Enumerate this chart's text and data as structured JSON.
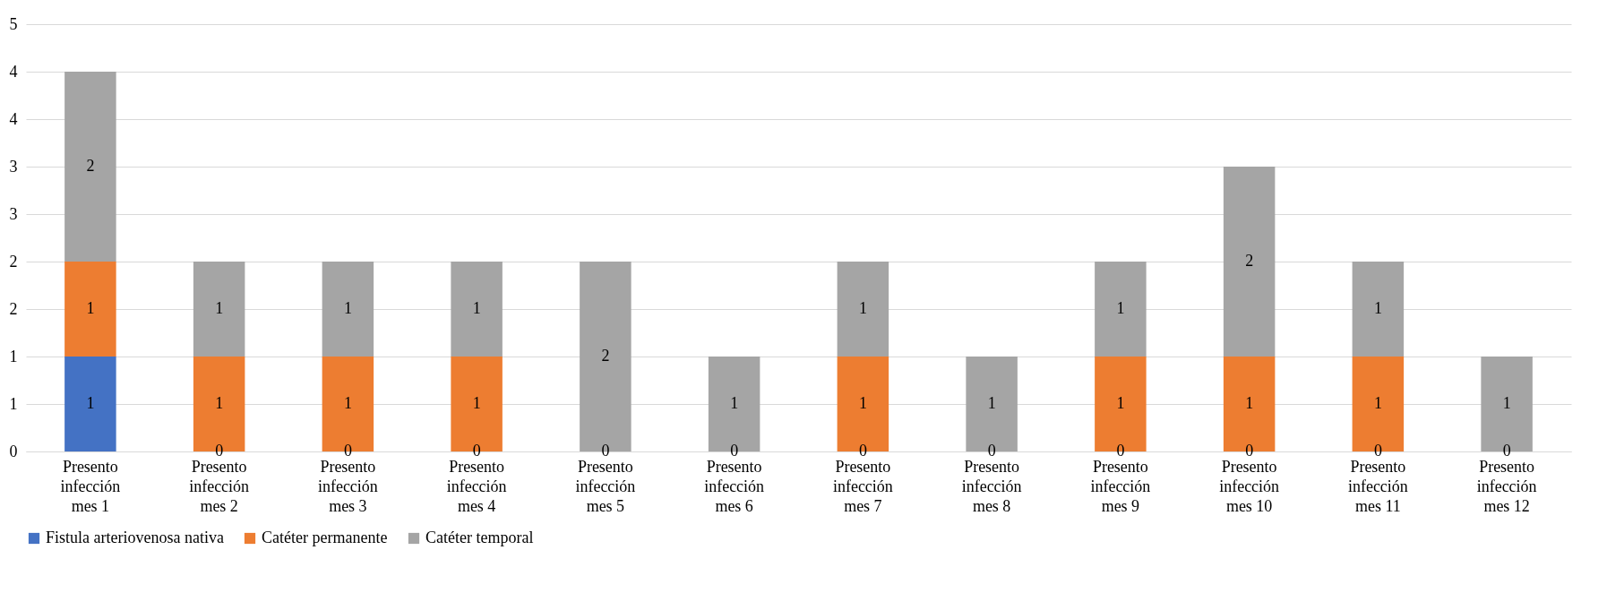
{
  "chart_data": {
    "type": "bar",
    "stacked": true,
    "grid": "y",
    "legend": "bottom",
    "categories": [
      "Presento infección mes 1",
      "Presento infección mes 2",
      "Presento infección mes 3",
      "Presento infección mes 4",
      "Presento infección mes 5",
      "Presento infección mes 6",
      "Presento infección mes 7",
      "Presento infección mes 8",
      "Presento infección mes 9",
      "Presento infección mes 10",
      "Presento infección mes 11",
      "Presento infección mes 12"
    ],
    "ylim": [
      0,
      4.5
    ],
    "yticks": [
      0,
      {
        "value": 0.5,
        "label": "1"
      },
      1,
      {
        "value": 1.5,
        "label": "2"
      },
      2,
      {
        "value": 2.5,
        "label": "3"
      },
      3,
      {
        "value": 3.5,
        "label": "4"
      },
      4,
      {
        "value": 4.5,
        "label": "5"
      }
    ],
    "series": [
      {
        "name": "Fistula arteriovenosa nativa",
        "color": "#4472c4",
        "values": [
          1,
          0,
          0,
          0,
          0,
          0,
          0,
          0,
          0,
          0,
          0,
          0
        ],
        "value_labels": [
          "1",
          null,
          null,
          null,
          null,
          null,
          null,
          null,
          null,
          null,
          null,
          null
        ]
      },
      {
        "name": "Catéter permanente",
        "color": "#ed7d31",
        "values": [
          1,
          1,
          1,
          1,
          0,
          0,
          1,
          0,
          1,
          1,
          1,
          0
        ],
        "value_labels": [
          "1",
          "1",
          "1",
          "1",
          null,
          null,
          "1",
          null,
          "1",
          "1",
          "1",
          null
        ]
      },
      {
        "name": "Catéter temporal",
        "color": "#a5a5a5",
        "values": [
          2,
          1,
          1,
          1,
          2,
          1,
          1,
          1,
          1,
          2,
          1,
          1
        ],
        "value_labels": [
          "2",
          "1",
          "1",
          "1",
          "2",
          "1",
          "1",
          "1",
          "1",
          "2",
          "1",
          "1"
        ]
      }
    ],
    "annotations": [
      {
        "text": "0",
        "x": "Presento infección mes 2",
        "y": 0
      },
      {
        "text": "0",
        "x": "Presento infección mes 3",
        "y": 0
      },
      {
        "text": "0",
        "x": "Presento infección mes 4",
        "y": 0
      },
      {
        "text": "0",
        "x": "Presento infección mes 5",
        "y": 0
      },
      {
        "text": "0",
        "x": "Presento infección mes 6",
        "y": 0
      },
      {
        "text": "0",
        "x": "Presento infección mes 7",
        "y": 0
      },
      {
        "text": "0",
        "x": "Presento infección mes 8",
        "y": 0
      },
      {
        "text": "0",
        "x": "Presento infección mes 9",
        "y": 0
      },
      {
        "text": "0",
        "x": "Presento infección mes 10",
        "y": 0
      },
      {
        "text": "0",
        "x": "Presento infección mes 11",
        "y": 0
      },
      {
        "text": "0",
        "x": "Presento infección mes 12",
        "y": 0
      }
    ]
  }
}
